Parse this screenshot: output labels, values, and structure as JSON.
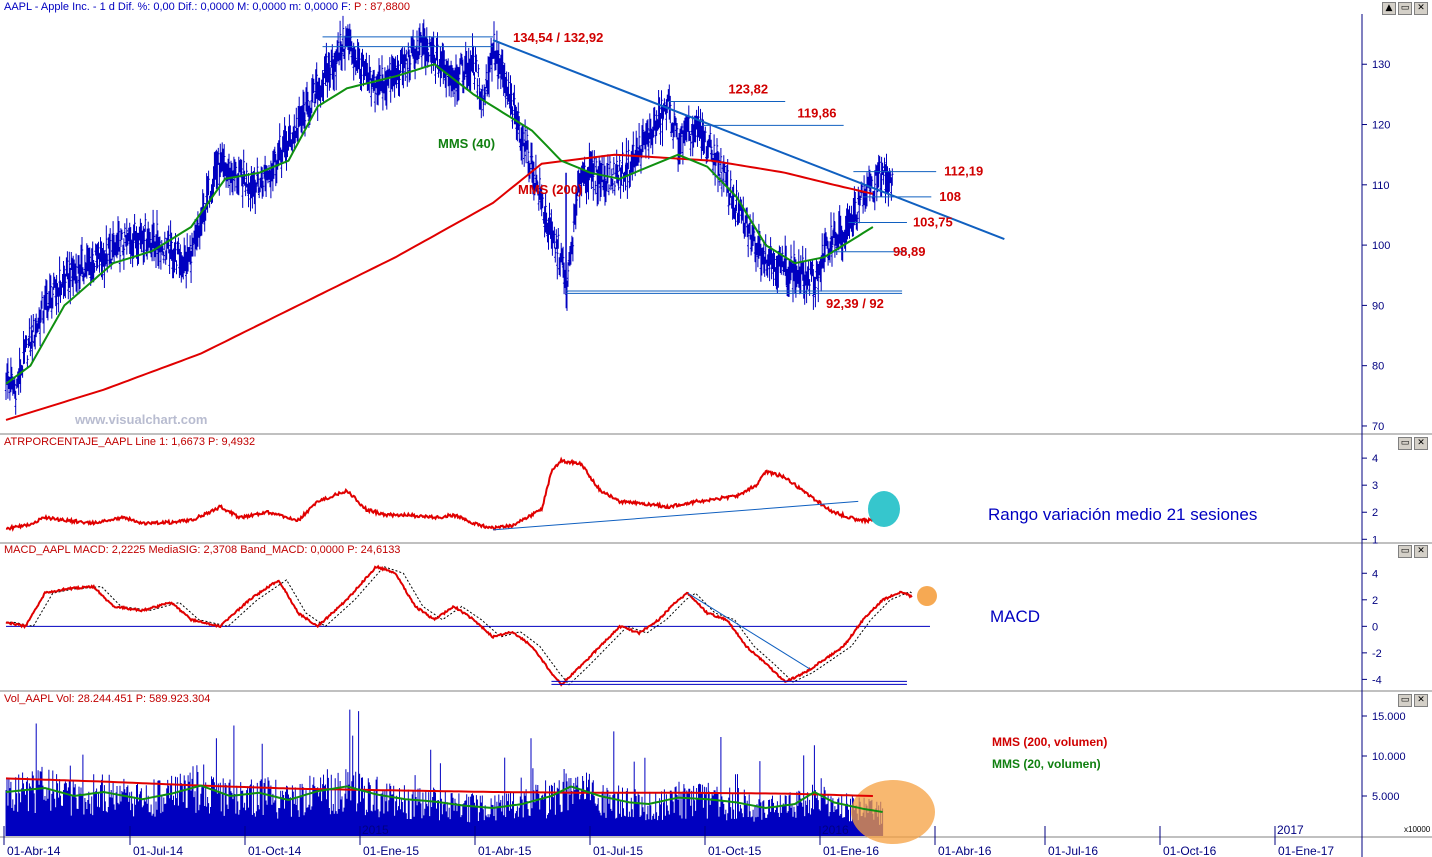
{
  "headers": {
    "price": "AAPL - Apple Inc. - 1 d Dif. %: 0,00  Dif.: 0,0000  M: 0,0000  m: 0,0000  F:",
    "price_close": "P : 87,8800",
    "atr": "ATRPORCENTAJE_AAPL Line 1: 1,6673  P: 9,4932",
    "macd": "MACD_AAPL MACD: 2,2225  MediaSIG: 2,3708  Band_MACD: 0,0000  P: 24,6133",
    "vol": "Vol_AAPL Vol: 28.244.451  P: 589.923.304"
  },
  "window_buttons": [
    "▲",
    "▭",
    "✕"
  ],
  "watermark": "www.visualchart.com",
  "annotations": {
    "mms40": "MMS (40)",
    "mms200": "MMS (200)",
    "atr_note": "Rango variación medio 21 sesiones",
    "macd_note": "MACD",
    "vol_mms200": "MMS (200, volumen)",
    "vol_mms20": "MMS (20, volumen)",
    "vol_multiplier": "x10000"
  },
  "colors": {
    "price_bars": "#0000c0",
    "ma200": "#e00000",
    "ma40": "#109010",
    "trendline": "#1060c0",
    "level_lines": "#1060c0",
    "label_red": "#d00000",
    "highlight_cyan": "#20c0c8",
    "highlight_orange": "#f5a040"
  },
  "chart_data": [
    {
      "type": "line",
      "name": "price",
      "yticks": [
        70,
        80,
        90,
        100,
        110,
        120,
        130
      ],
      "ylim": [
        69,
        138
      ],
      "price_anchors": [
        [
          0,
          78
        ],
        [
          2,
          76
        ],
        [
          4,
          82
        ],
        [
          8,
          90
        ],
        [
          13,
          95
        ],
        [
          20,
          98
        ],
        [
          28,
          102
        ],
        [
          37,
          97
        ],
        [
          39,
          100
        ],
        [
          43,
          113
        ],
        [
          48,
          111
        ],
        [
          52,
          110
        ],
        [
          58,
          117
        ],
        [
          65,
          127
        ],
        [
          70,
          134
        ],
        [
          75,
          126
        ],
        [
          80,
          128
        ],
        [
          85,
          133
        ],
        [
          92,
          128
        ],
        [
          96,
          130
        ],
        [
          98,
          124
        ],
        [
          100,
          133
        ],
        [
          103,
          125
        ],
        [
          108,
          113
        ],
        [
          112,
          101
        ],
        [
          114,
          98
        ],
        [
          115,
          92
        ],
        [
          118,
          112
        ],
        [
          124,
          111
        ],
        [
          128,
          113
        ],
        [
          132,
          118
        ],
        [
          136,
          123
        ],
        [
          138,
          117
        ],
        [
          142,
          119
        ],
        [
          146,
          114
        ],
        [
          150,
          106
        ],
        [
          154,
          100
        ],
        [
          158,
          97
        ],
        [
          163,
          95
        ],
        [
          166,
          94
        ],
        [
          170,
          102
        ],
        [
          172,
          101
        ],
        [
          176,
          108
        ],
        [
          180,
          112
        ],
        [
          182,
          111
        ]
      ],
      "ma40_anchors": [
        [
          0,
          77
        ],
        [
          5,
          80
        ],
        [
          12,
          90
        ],
        [
          22,
          97
        ],
        [
          30,
          99
        ],
        [
          38,
          103
        ],
        [
          45,
          111
        ],
        [
          52,
          112
        ],
        [
          58,
          114
        ],
        [
          64,
          123
        ],
        [
          70,
          126
        ],
        [
          80,
          128
        ],
        [
          88,
          130
        ],
        [
          96,
          125
        ],
        [
          102,
          122
        ],
        [
          108,
          119
        ],
        [
          114,
          114
        ],
        [
          120,
          112
        ],
        [
          126,
          111
        ],
        [
          132,
          113
        ],
        [
          138,
          115
        ],
        [
          144,
          113
        ],
        [
          150,
          108
        ],
        [
          156,
          100
        ],
        [
          162,
          97
        ],
        [
          168,
          98
        ],
        [
          174,
          101
        ],
        [
          178,
          103
        ]
      ],
      "ma200_anchors": [
        [
          0,
          71
        ],
        [
          20,
          76
        ],
        [
          40,
          82
        ],
        [
          60,
          90
        ],
        [
          80,
          98
        ],
        [
          100,
          107
        ],
        [
          110,
          113.5
        ],
        [
          125,
          115
        ],
        [
          145,
          114
        ],
        [
          160,
          112
        ],
        [
          170,
          110
        ],
        [
          178,
          108.5
        ]
      ],
      "trendline": [
        [
          100,
          134
        ],
        [
          205,
          101
        ]
      ],
      "levels": [
        {
          "label": "134,54 / 132,92",
          "values": [
            134.54,
            132.92
          ],
          "x0": 65,
          "x1": 100
        },
        {
          "label": "123,82",
          "values": [
            123.82
          ],
          "x0": 136,
          "x1": 160
        },
        {
          "label": "119,86",
          "values": [
            119.86
          ],
          "x0": 143,
          "x1": 172
        },
        {
          "label": "112,19",
          "values": [
            112.19
          ],
          "x0": 174,
          "x1": 191
        },
        {
          "label": "108",
          "values": [
            108
          ],
          "x0": 176,
          "x1": 190
        },
        {
          "label": "103,75",
          "values": [
            103.75
          ],
          "x0": 173,
          "x1": 185
        },
        {
          "label": "98,89",
          "values": [
            98.89
          ],
          "x0": 170,
          "x1": 185
        },
        {
          "label": "92,39 / 92",
          "values": [
            92.39,
            92
          ],
          "x0": 115,
          "x1": 184
        }
      ]
    },
    {
      "type": "line",
      "name": "atr",
      "yticks": [
        1,
        2,
        3,
        4
      ],
      "ylim": [
        0.9,
        4.3
      ],
      "anchors": [
        [
          0,
          1.4
        ],
        [
          4,
          1.5
        ],
        [
          8,
          1.8
        ],
        [
          12,
          1.7
        ],
        [
          18,
          1.6
        ],
        [
          24,
          1.8
        ],
        [
          28,
          1.6
        ],
        [
          32,
          1.6
        ],
        [
          38,
          1.7
        ],
        [
          44,
          2.2
        ],
        [
          48,
          1.8
        ],
        [
          54,
          2.0
        ],
        [
          60,
          1.7
        ],
        [
          64,
          2.4
        ],
        [
          70,
          2.8
        ],
        [
          74,
          2.1
        ],
        [
          78,
          1.9
        ],
        [
          82,
          1.9
        ],
        [
          88,
          1.8
        ],
        [
          92,
          1.9
        ],
        [
          96,
          1.6
        ],
        [
          100,
          1.4
        ],
        [
          104,
          1.5
        ],
        [
          108,
          1.9
        ],
        [
          110,
          2.1
        ],
        [
          112,
          3.5
        ],
        [
          114,
          3.9
        ],
        [
          118,
          3.8
        ],
        [
          122,
          2.8
        ],
        [
          126,
          2.4
        ],
        [
          132,
          2.3
        ],
        [
          136,
          2.2
        ],
        [
          142,
          2.4
        ],
        [
          150,
          2.6
        ],
        [
          154,
          3.0
        ],
        [
          156,
          3.5
        ],
        [
          160,
          3.3
        ],
        [
          165,
          2.6
        ],
        [
          170,
          2.0
        ],
        [
          175,
          1.7
        ],
        [
          178,
          1.7
        ]
      ],
      "trendline": [
        [
          100,
          1.35
        ],
        [
          175,
          2.4
        ]
      ]
    },
    {
      "type": "line",
      "name": "macd",
      "yticks": [
        4,
        2,
        0,
        -2,
        -4
      ],
      "ylim": [
        -4.8,
        5
      ],
      "anchors": [
        [
          0,
          0.3
        ],
        [
          4,
          0
        ],
        [
          8,
          2.5
        ],
        [
          12,
          2.8
        ],
        [
          18,
          3
        ],
        [
          22,
          1.5
        ],
        [
          28,
          1.2
        ],
        [
          34,
          1.8
        ],
        [
          38,
          0.5
        ],
        [
          44,
          0
        ],
        [
          50,
          2
        ],
        [
          56,
          3.5
        ],
        [
          60,
          1
        ],
        [
          64,
          0
        ],
        [
          70,
          2
        ],
        [
          76,
          4.5
        ],
        [
          80,
          4
        ],
        [
          84,
          1.5
        ],
        [
          88,
          0.5
        ],
        [
          92,
          1.5
        ],
        [
          96,
          0.5
        ],
        [
          100,
          -0.8
        ],
        [
          104,
          -0.4
        ],
        [
          108,
          -1.5
        ],
        [
          112,
          -3.5
        ],
        [
          114,
          -4.4
        ],
        [
          118,
          -3
        ],
        [
          122,
          -1.5
        ],
        [
          126,
          0
        ],
        [
          130,
          -0.5
        ],
        [
          134,
          0.5
        ],
        [
          138,
          2
        ],
        [
          140,
          2.5
        ],
        [
          144,
          1
        ],
        [
          148,
          0.5
        ],
        [
          152,
          -1.5
        ],
        [
          156,
          -2.8
        ],
        [
          160,
          -4.2
        ],
        [
          164,
          -3.5
        ],
        [
          168,
          -2.5
        ],
        [
          172,
          -1.5
        ],
        [
          176,
          0.5
        ],
        [
          180,
          2
        ],
        [
          184,
          2.6
        ],
        [
          186,
          2.2
        ]
      ],
      "zero_line": 0,
      "trendline": [
        [
          140,
          2.5
        ],
        [
          165,
          -3.2
        ]
      ],
      "support_line": -4.3
    },
    {
      "type": "bar",
      "name": "volume",
      "yticks": [
        5000,
        10000,
        15000
      ],
      "ytick_labels": [
        "5.000",
        "10.000",
        "15.000"
      ],
      "ylim": [
        0,
        16000
      ],
      "ma200_anchors": [
        [
          0,
          7200
        ],
        [
          20,
          6800
        ],
        [
          40,
          6300
        ],
        [
          60,
          5900
        ],
        [
          80,
          5700
        ],
        [
          100,
          5500
        ],
        [
          120,
          5400
        ],
        [
          140,
          5400
        ],
        [
          160,
          5300
        ],
        [
          178,
          5000
        ]
      ],
      "ma20_anchors": [
        [
          0,
          5500
        ],
        [
          8,
          6000
        ],
        [
          14,
          5000
        ],
        [
          20,
          5500
        ],
        [
          28,
          4600
        ],
        [
          34,
          5300
        ],
        [
          40,
          6300
        ],
        [
          46,
          5000
        ],
        [
          52,
          5400
        ],
        [
          58,
          4500
        ],
        [
          64,
          5600
        ],
        [
          70,
          6200
        ],
        [
          76,
          5200
        ],
        [
          82,
          4600
        ],
        [
          88,
          4300
        ],
        [
          94,
          3800
        ],
        [
          100,
          3500
        ],
        [
          106,
          4000
        ],
        [
          112,
          5000
        ],
        [
          116,
          6200
        ],
        [
          122,
          5000
        ],
        [
          128,
          4200
        ],
        [
          132,
          4000
        ],
        [
          138,
          4800
        ],
        [
          144,
          4600
        ],
        [
          150,
          4200
        ],
        [
          156,
          3500
        ],
        [
          162,
          4000
        ],
        [
          166,
          5500
        ],
        [
          170,
          4200
        ],
        [
          176,
          3400
        ],
        [
          180,
          3000
        ]
      ]
    }
  ],
  "date_axis": {
    "labels": [
      "01-Abr-14",
      "01-Jul-14",
      "01-Oct-14",
      "01-Ene-15",
      "01-Abr-15",
      "01-Jul-15",
      "01-Oct-15",
      "01-Ene-16",
      "01-Abr-16",
      "01-Jul-16",
      "01-Oct-16",
      "01-Ene-17"
    ],
    "year_labels": [
      "2015",
      "2016",
      "2017"
    ]
  }
}
